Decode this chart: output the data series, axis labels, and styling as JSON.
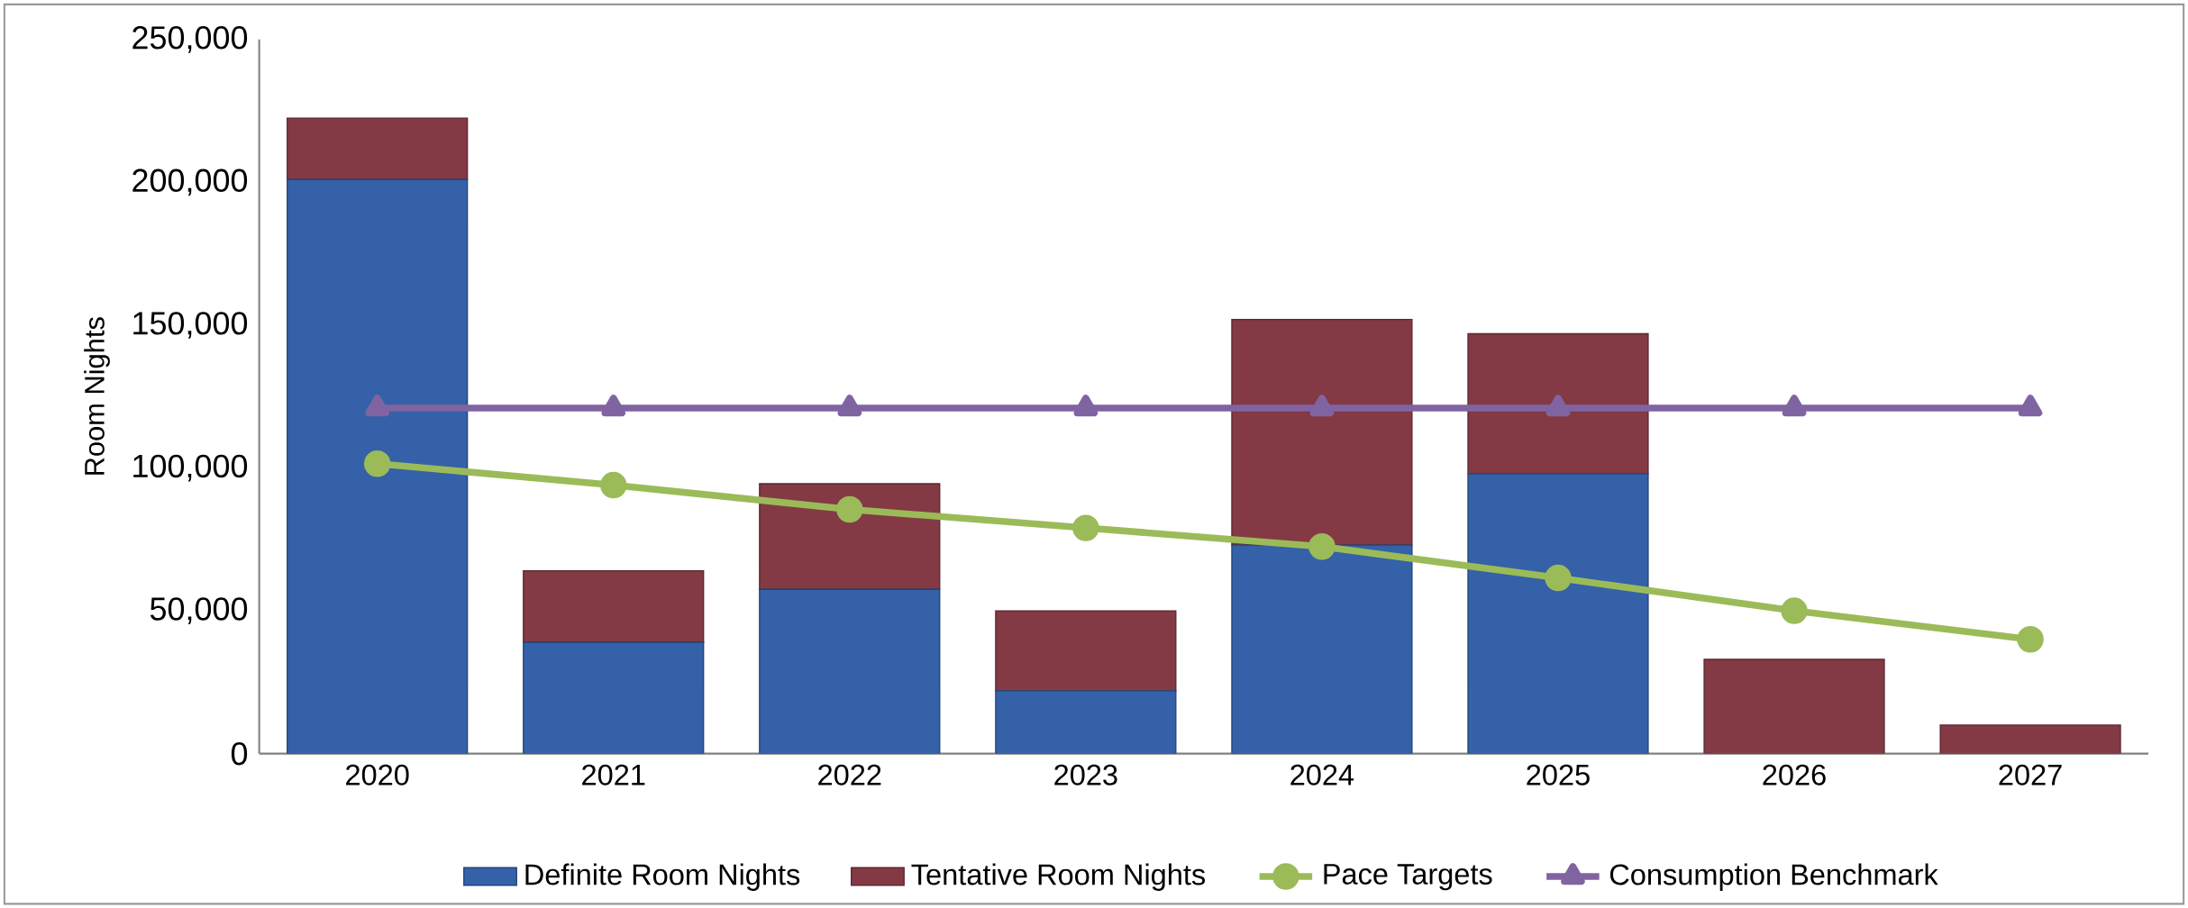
{
  "chart_data": {
    "type": "bar",
    "stacked": true,
    "ylabel": "Room Nights",
    "categories": [
      "2020",
      "2021",
      "2022",
      "2023",
      "2024",
      "2025",
      "2026",
      "2027"
    ],
    "series": [
      {
        "name": "Definite Room Nights",
        "color": "#3461a8",
        "values": [
          201000,
          39000,
          57500,
          22000,
          73000,
          98000,
          0,
          0
        ]
      },
      {
        "name": "Tentative Room Nights",
        "color": "#833a44",
        "values": [
          21500,
          25000,
          37000,
          28000,
          79000,
          49000,
          33000,
          10000
        ]
      },
      {
        "name": "Pace Targets",
        "type": "line",
        "marker": "circle",
        "color": "#9bbb59",
        "values": [
          101500,
          94000,
          85500,
          79000,
          72500,
          61500,
          50000,
          40000
        ]
      },
      {
        "name": "Consumption Benchmark",
        "type": "line",
        "marker": "triangle",
        "color": "#8064a2",
        "values": [
          121000,
          121000,
          121000,
          121000,
          121000,
          121000,
          121000,
          121000
        ]
      }
    ],
    "ylim": [
      0,
      250000
    ],
    "yticks": [
      0,
      {
        "value": 50000,
        "label": "50,000"
      },
      {
        "value": 100000,
        "label": "100,000"
      },
      {
        "value": 150000,
        "label": "150,000"
      },
      {
        "value": 200000,
        "label": "200,000"
      },
      {
        "value": 250000,
        "label": "250,000"
      }
    ],
    "grid": false,
    "legend": "bottom"
  }
}
